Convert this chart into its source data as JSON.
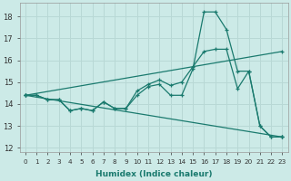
{
  "xlabel": "Humidex (Indice chaleur)",
  "background_color": "#cceae7",
  "grid_color": "#b8d8d5",
  "line_color": "#1a7a6e",
  "xlim": [
    -0.5,
    23.5
  ],
  "ylim": [
    11.8,
    18.6
  ],
  "yticks": [
    12,
    13,
    14,
    15,
    16,
    17,
    18
  ],
  "xticks": [
    0,
    1,
    2,
    3,
    4,
    5,
    6,
    7,
    8,
    9,
    10,
    11,
    12,
    13,
    14,
    15,
    16,
    17,
    18,
    19,
    20,
    21,
    22,
    23
  ],
  "series": [
    {
      "x": [
        0,
        1,
        2,
        3,
        4,
        5,
        6,
        7,
        8,
        9,
        10,
        11,
        12,
        13,
        14,
        15,
        16,
        17,
        18,
        19,
        20,
        21,
        22,
        23
      ],
      "y": [
        14.4,
        14.4,
        14.2,
        14.2,
        13.7,
        13.8,
        13.7,
        14.1,
        13.8,
        13.8,
        14.4,
        14.8,
        14.9,
        14.4,
        14.4,
        15.6,
        18.2,
        18.2,
        17.4,
        15.5,
        15.5,
        13.0,
        12.5,
        12.5
      ]
    },
    {
      "x": [
        0,
        1,
        2,
        3,
        4,
        5,
        6,
        7,
        8,
        9,
        10,
        11,
        12,
        13,
        14,
        15,
        16,
        17,
        18,
        19,
        20,
        21,
        22,
        23
      ],
      "y": [
        14.4,
        14.4,
        14.2,
        14.2,
        13.7,
        13.8,
        13.7,
        14.1,
        13.8,
        13.8,
        14.6,
        14.9,
        15.1,
        14.85,
        15.0,
        15.7,
        16.4,
        16.5,
        16.5,
        14.7,
        15.5,
        13.0,
        12.5,
        12.5
      ]
    },
    {
      "x": [
        0,
        23
      ],
      "y": [
        14.4,
        12.5
      ]
    },
    {
      "x": [
        0,
        23
      ],
      "y": [
        14.4,
        16.4
      ]
    }
  ]
}
